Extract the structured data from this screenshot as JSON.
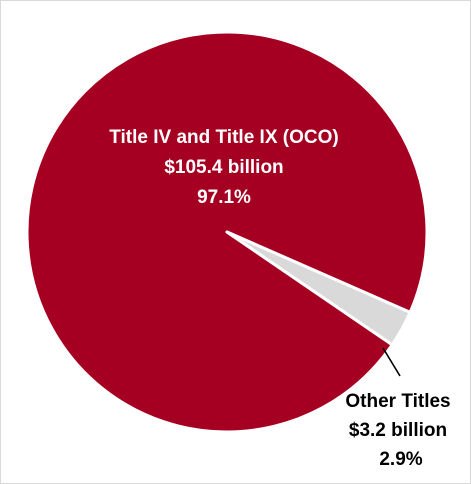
{
  "chart_data": {
    "type": "pie",
    "title": "",
    "slices": [
      {
        "label": "Title IV and Title IX (OCO)",
        "value_text": "$105.4 billion",
        "value": 105.4,
        "percent_text": "97.1%",
        "percent": 97.1,
        "color": "#a50021"
      },
      {
        "label": "Other Titles",
        "value_text": "$3.2 billion",
        "value": 3.2,
        "percent_text": "2.9%",
        "percent": 2.9,
        "color": "#d9d9d9"
      }
    ],
    "units": "billion"
  }
}
